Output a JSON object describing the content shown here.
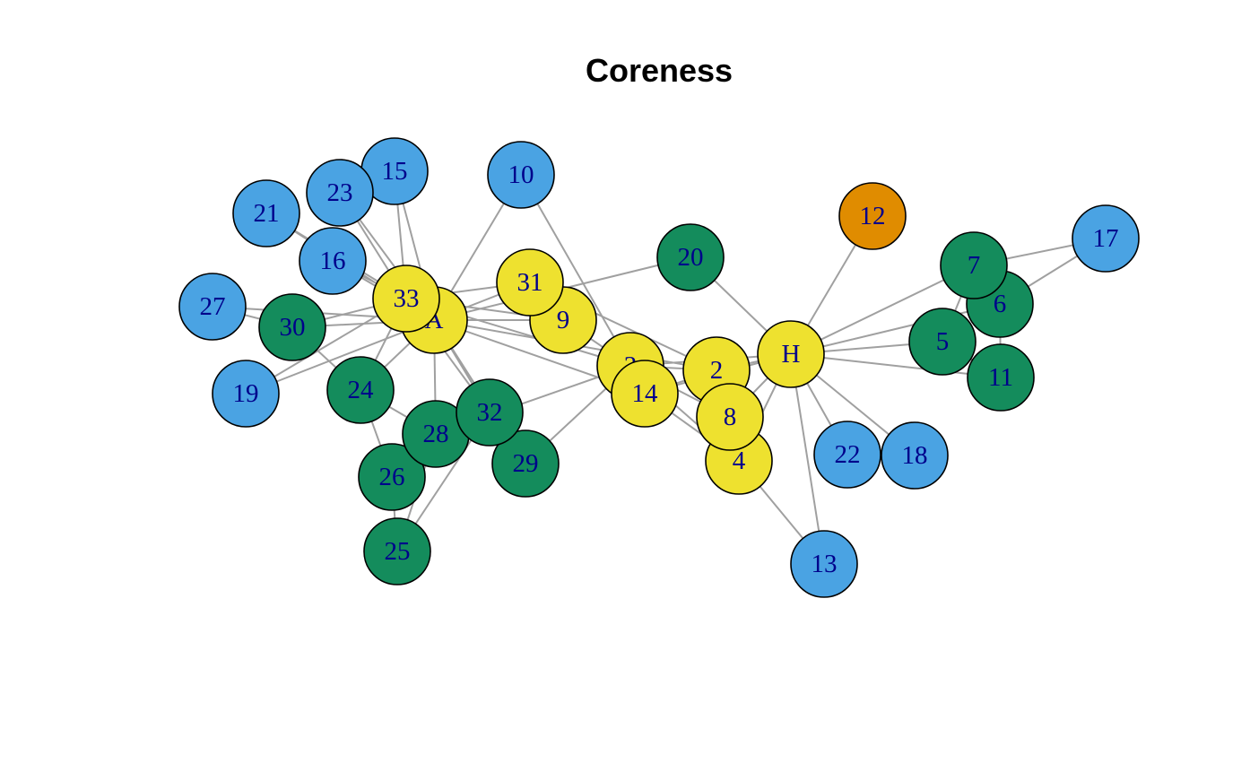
{
  "title": "Coreness",
  "colors": {
    "core1": "#e08c00",
    "core2": "#4aa3e3",
    "core3": "#148c5c",
    "core4": "#eee12f",
    "edge": "#a0a0a0",
    "label": "#00008b"
  },
  "nodes": [
    {
      "id": "A",
      "core": 4
    },
    {
      "id": "2",
      "core": 4
    },
    {
      "id": "3",
      "core": 4
    },
    {
      "id": "4",
      "core": 4
    },
    {
      "id": "5",
      "core": 3
    },
    {
      "id": "6",
      "core": 3
    },
    {
      "id": "7",
      "core": 3
    },
    {
      "id": "8",
      "core": 4
    },
    {
      "id": "9",
      "core": 4
    },
    {
      "id": "10",
      "core": 2
    },
    {
      "id": "11",
      "core": 3
    },
    {
      "id": "12",
      "core": 1
    },
    {
      "id": "13",
      "core": 2
    },
    {
      "id": "14",
      "core": 4
    },
    {
      "id": "15",
      "core": 2
    },
    {
      "id": "16",
      "core": 2
    },
    {
      "id": "17",
      "core": 2
    },
    {
      "id": "18",
      "core": 2
    },
    {
      "id": "19",
      "core": 2
    },
    {
      "id": "20",
      "core": 3
    },
    {
      "id": "21",
      "core": 2
    },
    {
      "id": "22",
      "core": 2
    },
    {
      "id": "23",
      "core": 2
    },
    {
      "id": "24",
      "core": 3
    },
    {
      "id": "25",
      "core": 3
    },
    {
      "id": "26",
      "core": 3
    },
    {
      "id": "27",
      "core": 2
    },
    {
      "id": "28",
      "core": 3
    },
    {
      "id": "29",
      "core": 3
    },
    {
      "id": "30",
      "core": 3
    },
    {
      "id": "31",
      "core": 4
    },
    {
      "id": "32",
      "core": 3
    },
    {
      "id": "33",
      "core": 4
    },
    {
      "id": "H",
      "core": 4
    }
  ],
  "edges": [
    [
      "H",
      "2"
    ],
    [
      "H",
      "3"
    ],
    [
      "H",
      "4"
    ],
    [
      "H",
      "5"
    ],
    [
      "H",
      "6"
    ],
    [
      "H",
      "7"
    ],
    [
      "H",
      "8"
    ],
    [
      "H",
      "11"
    ],
    [
      "H",
      "12"
    ],
    [
      "H",
      "13"
    ],
    [
      "H",
      "14"
    ],
    [
      "H",
      "18"
    ],
    [
      "H",
      "20"
    ],
    [
      "H",
      "22"
    ],
    [
      "2",
      "3"
    ],
    [
      "2",
      "4"
    ],
    [
      "2",
      "8"
    ],
    [
      "2",
      "14"
    ],
    [
      "2",
      "31"
    ],
    [
      "2",
      "A"
    ],
    [
      "3",
      "4"
    ],
    [
      "3",
      "8"
    ],
    [
      "3",
      "9"
    ],
    [
      "3",
      "10"
    ],
    [
      "3",
      "14"
    ],
    [
      "3",
      "28"
    ],
    [
      "3",
      "29"
    ],
    [
      "3",
      "33"
    ],
    [
      "4",
      "8"
    ],
    [
      "4",
      "13"
    ],
    [
      "4",
      "14"
    ],
    [
      "5",
      "7"
    ],
    [
      "5",
      "11"
    ],
    [
      "6",
      "7"
    ],
    [
      "6",
      "11"
    ],
    [
      "6",
      "17"
    ],
    [
      "7",
      "17"
    ],
    [
      "9",
      "31"
    ],
    [
      "9",
      "33"
    ],
    [
      "9",
      "A"
    ],
    [
      "10",
      "A"
    ],
    [
      "14",
      "A"
    ],
    [
      "15",
      "33"
    ],
    [
      "15",
      "A"
    ],
    [
      "16",
      "33"
    ],
    [
      "16",
      "A"
    ],
    [
      "19",
      "33"
    ],
    [
      "19",
      "A"
    ],
    [
      "20",
      "A"
    ],
    [
      "21",
      "33"
    ],
    [
      "21",
      "A"
    ],
    [
      "23",
      "33"
    ],
    [
      "23",
      "A"
    ],
    [
      "24",
      "26"
    ],
    [
      "24",
      "28"
    ],
    [
      "24",
      "30"
    ],
    [
      "24",
      "33"
    ],
    [
      "24",
      "A"
    ],
    [
      "25",
      "26"
    ],
    [
      "25",
      "28"
    ],
    [
      "25",
      "32"
    ],
    [
      "26",
      "32"
    ],
    [
      "27",
      "30"
    ],
    [
      "27",
      "A"
    ],
    [
      "28",
      "A"
    ],
    [
      "29",
      "32"
    ],
    [
      "29",
      "A"
    ],
    [
      "30",
      "33"
    ],
    [
      "30",
      "A"
    ],
    [
      "31",
      "33"
    ],
    [
      "31",
      "A"
    ],
    [
      "32",
      "33"
    ],
    [
      "32",
      "A"
    ],
    [
      "33",
      "A"
    ]
  ]
}
